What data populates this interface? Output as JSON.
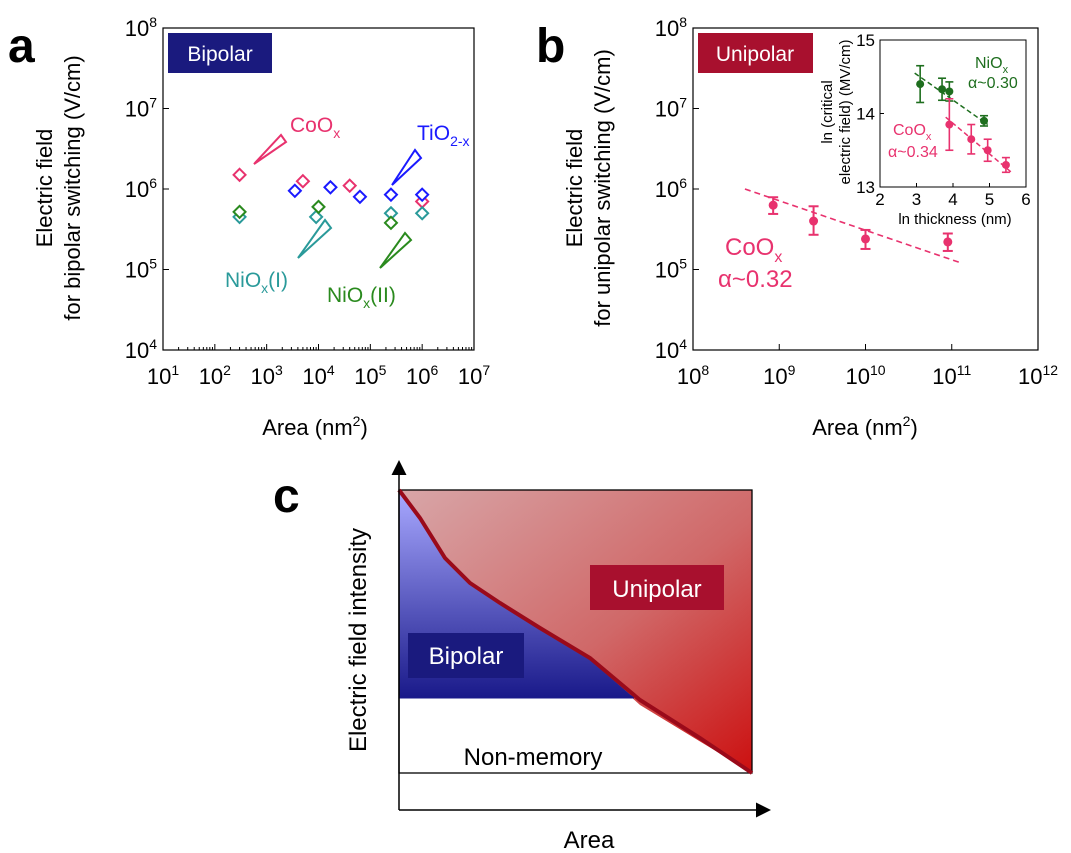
{
  "colors": {
    "bipolar_box": "#1a1a7e",
    "unipolar_box": "#a8102e",
    "coox": "#e8326e",
    "tio2": "#1a1aff",
    "niox1": "#2a9a9a",
    "niox2": "#2a8a1e",
    "inset_niox": "#1e6e1e"
  },
  "panels": {
    "a": {
      "letter": "a",
      "box_label": "Bipolar",
      "ylabel_line1": "Electric field",
      "ylabel_line2": "for bipolar switching (V/cm)",
      "xlabel": "Area (nm",
      "xlabel_sup": "2",
      "xlabel_end": ")",
      "yticks": [
        {
          "base": "10",
          "exp": "8"
        },
        {
          "base": "10",
          "exp": "7"
        },
        {
          "base": "10",
          "exp": "6"
        },
        {
          "base": "10",
          "exp": "5"
        },
        {
          "base": "10",
          "exp": "4"
        }
      ],
      "xticks": [
        {
          "base": "10",
          "exp": "1"
        },
        {
          "base": "10",
          "exp": "2"
        },
        {
          "base": "10",
          "exp": "3"
        },
        {
          "base": "10",
          "exp": "4"
        },
        {
          "base": "10",
          "exp": "5"
        },
        {
          "base": "10",
          "exp": "6"
        },
        {
          "base": "10",
          "exp": "7"
        }
      ],
      "labels": {
        "coox": {
          "main": "CoO",
          "sub": "x"
        },
        "tio2": {
          "main": "TiO",
          "sub": "2-x"
        },
        "niox1": {
          "main": "NiO",
          "sub": "x",
          "end": "(I)"
        },
        "niox2": {
          "main": "NiO",
          "sub": "x",
          "end": "(II)"
        }
      }
    },
    "b": {
      "letter": "b",
      "box_label": "Unipolar",
      "ylabel_line1": "Electric field",
      "ylabel_line2": "for unipolar switching (V/cm)",
      "xlabel": "Area (nm",
      "xlabel_sup": "2",
      "xlabel_end": ")",
      "yticks": [
        {
          "base": "10",
          "exp": "8"
        },
        {
          "base": "10",
          "exp": "7"
        },
        {
          "base": "10",
          "exp": "6"
        },
        {
          "base": "10",
          "exp": "5"
        },
        {
          "base": "10",
          "exp": "4"
        }
      ],
      "xticks": [
        {
          "base": "10",
          "exp": "8"
        },
        {
          "base": "10",
          "exp": "9"
        },
        {
          "base": "10",
          "exp": "10"
        },
        {
          "base": "10",
          "exp": "11"
        },
        {
          "base": "10",
          "exp": "12"
        }
      ],
      "series_label": {
        "main": "CoO",
        "sub": "x",
        "alpha": "α~0.32"
      },
      "inset": {
        "ylabel_line1": "ln (critical",
        "ylabel_line2": "electric field) (MV/cm)",
        "xlabel": "ln thickness (nm)",
        "yticks": [
          "15",
          "14",
          "13"
        ],
        "xticks": [
          "2",
          "3",
          "4",
          "5",
          "6"
        ],
        "niox_label": {
          "main": "NiO",
          "sub": "x",
          "alpha": "α~0.30"
        },
        "coox_label": {
          "main": "CoO",
          "sub": "x",
          "alpha": "α~0.34"
        }
      }
    },
    "c": {
      "letter": "c",
      "ylabel": "Electric field intensity",
      "xlabel": "Area",
      "unipolar": "Unipolar",
      "bipolar": "Bipolar",
      "nonmemory": "Non-memory"
    }
  },
  "chart_data": [
    {
      "type": "scatter",
      "panel": "a",
      "xlabel": "Area (nm2)",
      "ylabel": "Electric field for bipolar switching (V/cm)",
      "xscale": "log",
      "yscale": "log",
      "xlim": [
        10,
        10000000
      ],
      "ylim": [
        10000,
        100000000
      ],
      "legend": "none",
      "series": [
        {
          "name": "CoOx",
          "color": "#e8326e",
          "marker": "diamond",
          "x": [
            300,
            5000,
            40000,
            1000000
          ],
          "y": [
            1500000,
            1250000,
            1100000,
            700000
          ]
        },
        {
          "name": "TiO2-x",
          "color": "#1a1aff",
          "marker": "diamond",
          "x": [
            3500,
            17000,
            63000,
            250000,
            1000000
          ],
          "y": [
            950000,
            1050000,
            800000,
            850000,
            850000
          ]
        },
        {
          "name": "NiOx(I)",
          "color": "#2a9a9a",
          "marker": "diamond",
          "x": [
            300,
            9000,
            250000,
            1000000
          ],
          "y": [
            450000,
            450000,
            500000,
            500000
          ]
        },
        {
          "name": "NiOx(II)",
          "color": "#2a8a1e",
          "marker": "diamond",
          "x": [
            300,
            10000,
            250000
          ],
          "y": [
            520000,
            600000,
            380000
          ]
        }
      ]
    },
    {
      "type": "scatter",
      "panel": "b",
      "xlabel": "Area (nm2)",
      "ylabel": "Electric field for unipolar switching (V/cm)",
      "xscale": "log",
      "yscale": "log",
      "xlim": [
        100000000,
        1000000000000
      ],
      "ylim": [
        10000,
        100000000
      ],
      "series": [
        {
          "name": "CoOx",
          "color": "#e8326e",
          "marker": "circle",
          "x": [
            850000000,
            2500000000,
            10000000000,
            90000000000
          ],
          "y": [
            630000,
            400000,
            240000,
            220000
          ],
          "err_low": [
            490000,
            270000,
            180000,
            170000
          ],
          "err_high": [
            790000,
            610000,
            310000,
            280000
          ]
        }
      ],
      "fit": {
        "color": "#e8326e",
        "style": "dashed",
        "alpha": "α~0.32",
        "x": [
          400000000,
          130000000000
        ],
        "y": [
          1000000,
          120000
        ]
      }
    },
    {
      "type": "scatter",
      "panel": "b-inset",
      "xlabel": "ln thickness (nm)",
      "ylabel": "ln (critical electric field) (MV/cm)",
      "xlim": [
        2,
        6
      ],
      "ylim": [
        13,
        15
      ],
      "series": [
        {
          "name": "NiOx",
          "color": "#1e6e1e",
          "marker": "circle",
          "x": [
            3.1,
            3.7,
            3.9,
            4.85
          ],
          "y": [
            14.4,
            14.33,
            14.3,
            13.9
          ],
          "err": [
            0.25,
            0.15,
            0.13,
            0.07
          ]
        },
        {
          "name": "CoOx",
          "color": "#e8326e",
          "marker": "circle",
          "x": [
            3.9,
            4.5,
            4.95,
            5.45
          ],
          "y": [
            13.85,
            13.65,
            13.5,
            13.3
          ],
          "err": [
            0.35,
            0.2,
            0.15,
            0.1
          ]
        }
      ],
      "fits": [
        {
          "series": "NiOx",
          "alpha": "α~0.30",
          "x": [
            2.95,
            4.95
          ],
          "y": [
            14.55,
            13.85
          ]
        },
        {
          "series": "CoOx",
          "alpha": "α~0.34",
          "x": [
            3.8,
            5.6
          ],
          "y": [
            13.95,
            13.2
          ]
        }
      ]
    },
    {
      "type": "area",
      "panel": "c",
      "xlabel": "Area",
      "ylabel": "Electric field intensity",
      "regions": [
        "Unipolar",
        "Bipolar",
        "Non-memory"
      ],
      "colors": {
        "unipolar": "#c0181e",
        "bipolar": "#1a1a8a",
        "boundary": "#9a0a1a"
      }
    }
  ]
}
